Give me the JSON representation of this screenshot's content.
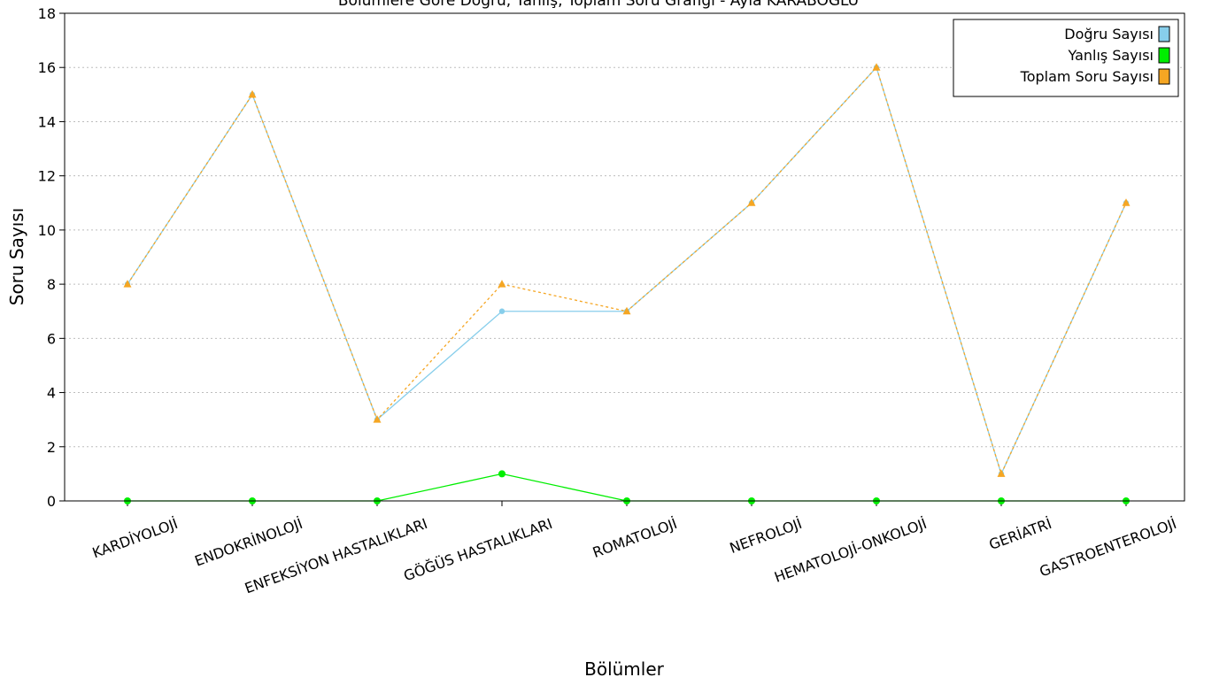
{
  "chart_data": {
    "type": "line",
    "title": "Bölümlere Göre Doğru, Yanlış, Toplam Soru Grafiği - Ayla KARABOĞLU",
    "xlabel": "Bölümler",
    "ylabel": "Soru Sayısı",
    "ylim": [
      0,
      18
    ],
    "yticks": [
      0,
      2,
      4,
      6,
      8,
      10,
      12,
      14,
      16,
      18
    ],
    "grid": "horizontal-dotted",
    "legend_position": "top-right",
    "categories": [
      "KARDİYOLOJİ",
      "ENDOKRİNOLOJİ",
      "ENFEKSİYON HASTALIKLARI",
      "GÖĞÜS HASTALIKLARI",
      "ROMATOLOJİ",
      "NEFROLOJİ",
      "HEMATOLOJİ-ONKOLOJİ",
      "GERİATRİ",
      "GASTROENTEROLOJİ"
    ],
    "series": [
      {
        "name": "Doğru Sayısı",
        "color": "#87ceeb",
        "values": [
          8,
          15,
          3,
          7,
          7,
          11,
          16,
          1,
          11
        ]
      },
      {
        "name": "Yanlış Sayısı",
        "color": "#00ee00",
        "values": [
          0,
          0,
          0,
          1,
          0,
          0,
          0,
          0,
          0
        ]
      },
      {
        "name": "Toplam Soru Sayısı",
        "color": "#f5a623",
        "values": [
          8,
          15,
          3,
          8,
          7,
          11,
          16,
          1,
          11
        ]
      }
    ]
  }
}
